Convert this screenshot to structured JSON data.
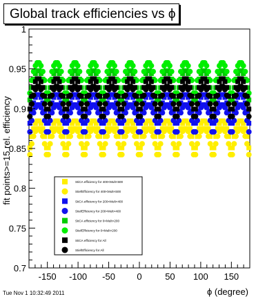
{
  "title": "Global track efficiencies vs ϕ",
  "footer": "Tue Nov  1 10:32:49 2011",
  "chart_data": {
    "type": "scatter",
    "title": "Global track efficiencies vs ϕ",
    "xlabel": "ϕ (degree)",
    "ylabel": "fit points>=15 rel. efficiency",
    "xlim": [
      -180,
      180
    ],
    "ylim": [
      0.7,
      1.0
    ],
    "xticks": [
      -150,
      -100,
      -50,
      0,
      50,
      100,
      150
    ],
    "xtick_labels": [
      "-150",
      "-100",
      "-50",
      "0",
      "50",
      "100",
      "150"
    ],
    "yticks": [
      0.7,
      0.75,
      0.8,
      0.85,
      0.9,
      0.95,
      1.0
    ],
    "ytick_labels": [
      "0.7",
      "0.75",
      "0.8",
      "0.85",
      "0.9",
      "0.95",
      "1"
    ],
    "grid": false,
    "legend_position": "bottom-left",
    "sector_count": 12,
    "series": [
      {
        "name": "StiCA efficiency  for 400<Mult<600",
        "color": "#ffee00",
        "marker": "square",
        "peak": 0.885,
        "trough": 0.838
      },
      {
        "name": "StiefEfficiency  for 400<Mult<600",
        "color": "#ffee00",
        "marker": "circle",
        "peak": 0.875,
        "trough": 0.83
      },
      {
        "name": "StiCA efficiency  for 200<Mult<400",
        "color": "#1111ee",
        "marker": "square",
        "peak": 0.918,
        "trough": 0.868
      },
      {
        "name": "StiefEfficiency  for 200<Mult<400",
        "color": "#1111ee",
        "marker": "circle",
        "peak": 0.905,
        "trough": 0.858
      },
      {
        "name": "StiCA efficiency  for 0<Mult<200",
        "color": "#00cc00",
        "marker": "square",
        "peak": 0.948,
        "trough": 0.897
      },
      {
        "name": "StiefEfficiency  for 0<Mult<200",
        "color": "#00ee00",
        "marker": "circle",
        "peak": 0.958,
        "trough": 0.905
      },
      {
        "name": "StiCA efficiency  for All",
        "color": "#000000",
        "marker": "square",
        "peak": 0.938,
        "trough": 0.885
      },
      {
        "name": "StiefEfficiency  for All",
        "color": "#000000",
        "marker": "circle",
        "peak": 0.928,
        "trough": 0.876
      }
    ]
  }
}
